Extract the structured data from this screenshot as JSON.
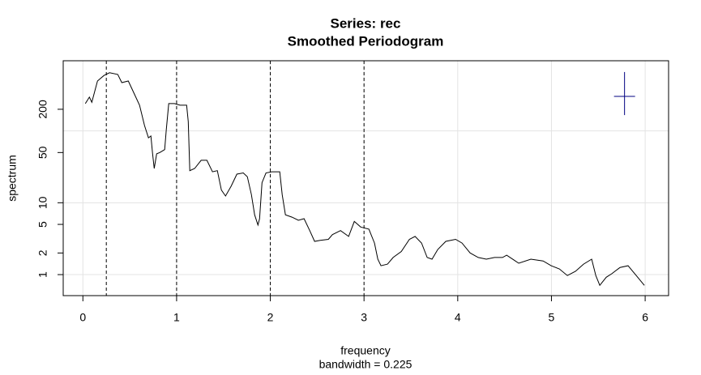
{
  "chart_data": {
    "type": "line",
    "title": "Series: rec",
    "subtitle": "Smoothed Periodogram",
    "xlabel": "frequency",
    "xsublabel": "bandwidth = 0.225",
    "ylabel": "spectrum",
    "ylog": true,
    "grid": true,
    "xlim": [
      -0.21,
      6.25
    ],
    "ylim": [
      0.51,
      947
    ],
    "xticks": [
      0,
      1,
      2,
      3,
      4,
      5,
      6
    ],
    "yticks": [
      1,
      2,
      5,
      10,
      50,
      200
    ],
    "ygrid": [
      1,
      10,
      100
    ],
    "vlines": [
      0.25,
      1,
      2,
      3
    ],
    "bandwidth_cross": {
      "x": 5.78,
      "y": 302,
      "width": 0.225,
      "ylow": 166,
      "yhigh": 660,
      "color": "#000080"
    },
    "series": [
      {
        "name": "rec",
        "color": "#000000",
        "x": [
          0.026,
          0.069,
          0.095,
          0.156,
          0.225,
          0.285,
          0.372,
          0.415,
          0.484,
          0.545,
          0.605,
          0.657,
          0.7,
          0.726,
          0.744,
          0.761,
          0.787,
          0.821,
          0.873,
          0.89,
          0.916,
          0.977,
          1.037,
          1.107,
          1.124,
          1.141,
          1.193,
          1.262,
          1.323,
          1.383,
          1.435,
          1.478,
          1.522,
          1.582,
          1.643,
          1.712,
          1.755,
          1.798,
          1.833,
          1.868,
          1.885,
          1.911,
          1.954,
          2.014,
          2.101,
          2.127,
          2.161,
          2.231,
          2.3,
          2.36,
          2.421,
          2.473,
          2.533,
          2.62,
          2.663,
          2.749,
          2.836,
          2.896,
          2.965,
          3.052,
          3.112,
          3.147,
          3.181,
          3.251,
          3.311,
          3.398,
          3.484,
          3.545,
          3.614,
          3.674,
          3.726,
          3.787,
          3.873,
          3.977,
          4.046,
          4.132,
          4.219,
          4.305,
          4.392,
          4.478,
          4.522,
          4.651,
          4.781,
          4.911,
          4.997,
          5.084,
          5.17,
          5.256,
          5.343,
          5.429,
          5.473,
          5.516,
          5.585,
          5.645,
          5.732,
          5.818,
          5.905,
          5.991
        ],
        "values": [
          240,
          295,
          250,
          495,
          590,
          645,
          610,
          470,
          495,
          335,
          228,
          119,
          80,
          85,
          48,
          30,
          48,
          50,
          55,
          104,
          240,
          240,
          228,
          228,
          135,
          28,
          30,
          39,
          39,
          27,
          28,
          15,
          12.4,
          17,
          25,
          26,
          23,
          13,
          6.8,
          4.9,
          6,
          19,
          26,
          27,
          27,
          13,
          6.8,
          6.3,
          5.7,
          6,
          4.1,
          2.9,
          3.0,
          3.1,
          3.6,
          4.1,
          3.4,
          5.5,
          4.6,
          4.3,
          2.75,
          1.64,
          1.33,
          1.4,
          1.73,
          2.1,
          3.1,
          3.4,
          2.75,
          1.73,
          1.64,
          2.24,
          2.9,
          3.1,
          2.75,
          2.0,
          1.73,
          1.64,
          1.73,
          1.73,
          1.86,
          1.44,
          1.64,
          1.55,
          1.33,
          1.2,
          0.97,
          1.11,
          1.4,
          1.64,
          0.97,
          0.71,
          0.92,
          1.03,
          1.26,
          1.33,
          0.97,
          0.71
        ]
      }
    ]
  }
}
